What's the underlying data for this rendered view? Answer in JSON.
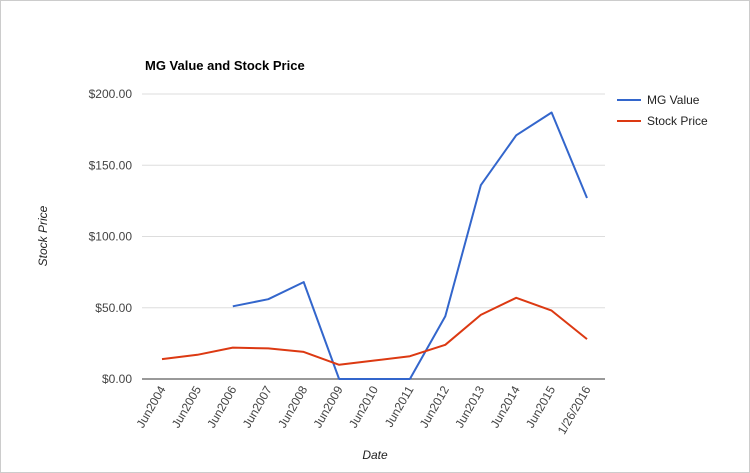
{
  "colors": {
    "mg_value": "#3366cc",
    "stock_price": "#dc3912",
    "gridline": "#dddddd",
    "axis": "#333333",
    "frame": "#cccccc"
  },
  "chart_data": {
    "type": "line",
    "title": "MG Value and Stock Price",
    "xlabel": "Date",
    "ylabel": "Stock Price",
    "ylim": [
      0,
      200
    ],
    "y_ticks": [
      "$0.00",
      "$50.00",
      "$100.00",
      "$150.00",
      "$200.00"
    ],
    "y_tick_values": [
      0,
      50,
      100,
      150,
      200
    ],
    "grid": true,
    "legend_position": "right",
    "categories": [
      "Jun2004",
      "Jun2005",
      "Jun2006",
      "Jun2007",
      "Jun2008",
      "Jun2009",
      "Jun2010",
      "Jun2011",
      "Jun2012",
      "Jun2013",
      "Jun2014",
      "Jun2015",
      "1/26/2016"
    ],
    "series": [
      {
        "name": "MG Value",
        "color": "#3366cc",
        "values": [
          null,
          null,
          51,
          56,
          68,
          0,
          0,
          0,
          44,
          136,
          171,
          187,
          127
        ]
      },
      {
        "name": "Stock Price",
        "color": "#dc3912",
        "values": [
          14,
          17,
          22,
          21.5,
          19,
          10,
          13,
          16,
          24,
          45,
          57,
          48,
          28
        ]
      }
    ]
  }
}
